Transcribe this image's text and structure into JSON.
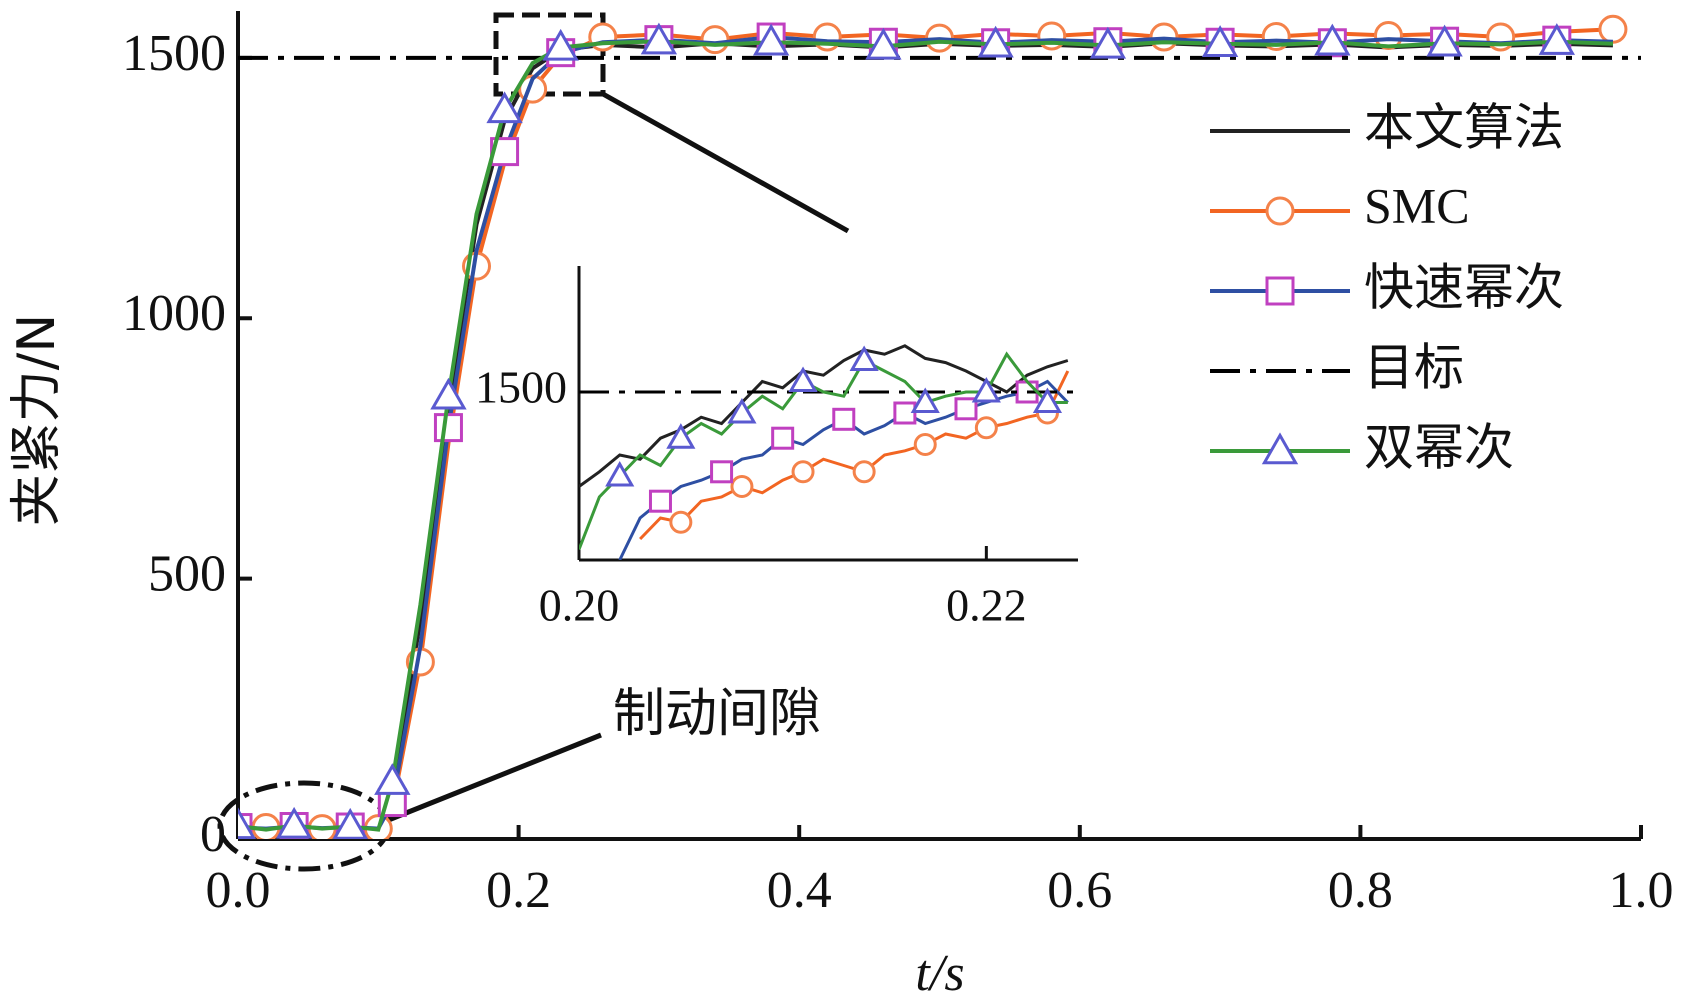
{
  "chart_data": [
    {
      "type": "line",
      "x_label": "t/s",
      "y_label": "夹紧力/N",
      "annotations": [
        "制动间隙"
      ],
      "xlim": [
        0,
        1
      ],
      "ylim": [
        0,
        1590
      ],
      "xticks": [
        {
          "value": 0,
          "label": "0.0"
        },
        0.2,
        0.4,
        0.6,
        0.8,
        {
          "value": 1,
          "label": "1.0"
        }
      ],
      "yticks": [
        0,
        500,
        1000,
        1500
      ],
      "legend": "upper right",
      "x": [
        0,
        0.02,
        0.04,
        0.06,
        0.08,
        0.1,
        0.11,
        0.13,
        0.15,
        0.17,
        0.19,
        0.21,
        0.23,
        0.26,
        0.3,
        0.34,
        0.38,
        0.42,
        0.46,
        0.5,
        0.54,
        0.58,
        0.62,
        0.66,
        0.7,
        0.74,
        0.78,
        0.82,
        0.86,
        0.9,
        0.94,
        0.98
      ],
      "series": [
        {
          "name": "本文算法",
          "color": "#222222",
          "marker": "none",
          "dash": "solid",
          "values": [
            20,
            25,
            18,
            24,
            20,
            22,
            90,
            420,
            830,
            1180,
            1380,
            1480,
            1515,
            1525,
            1520,
            1528,
            1522,
            1526,
            1520,
            1527,
            1523,
            1525,
            1521,
            1528,
            1524,
            1522,
            1526,
            1520,
            1525,
            1523,
            1527,
            1524
          ]
        },
        {
          "name": "SMC",
          "color": "#f26522",
          "marker": "circle",
          "marker_color": "#f4824a",
          "dash": "solid",
          "values": [
            20,
            22,
            24,
            20,
            22,
            20,
            60,
            340,
            760,
            1100,
            1300,
            1440,
            1505,
            1540,
            1545,
            1535,
            1548,
            1540,
            1545,
            1538,
            1546,
            1542,
            1548,
            1540,
            1545,
            1541,
            1547,
            1543,
            1546,
            1540,
            1550,
            1555
          ]
        },
        {
          "name": "快速幂次",
          "color": "#2e4fa3",
          "marker": "square",
          "marker_color": "#c040c0",
          "dash": "solid",
          "values": [
            22,
            20,
            24,
            21,
            23,
            20,
            70,
            370,
            790,
            1130,
            1320,
            1460,
            1510,
            1530,
            1535,
            1528,
            1540,
            1532,
            1530,
            1536,
            1529,
            1534,
            1531,
            1537,
            1530,
            1533,
            1529,
            1536,
            1532,
            1528,
            1534,
            1531
          ]
        },
        {
          "name": "目标",
          "color": "#000000",
          "marker": "none",
          "dash": "dashdot",
          "x": [
            0,
            1
          ],
          "values": [
            1500,
            1500
          ]
        },
        {
          "name": "双幂次",
          "color": "#3a9a3a",
          "marker": "triangle",
          "marker_color": "#5a5ad0",
          "dash": "solid",
          "values": [
            25,
            18,
            26,
            20,
            24,
            18,
            110,
            450,
            850,
            1200,
            1400,
            1490,
            1520,
            1528,
            1532,
            1525,
            1530,
            1527,
            1522,
            1531,
            1526,
            1529,
            1524,
            1530,
            1527,
            1525,
            1530,
            1522,
            1528,
            1526,
            1531,
            1527
          ]
        }
      ]
    },
    {
      "type": "line",
      "xlim": [
        0.2,
        0.2245
      ],
      "ylim": [
        1420,
        1560
      ],
      "xticks": [
        {
          "value": 0.2,
          "label": "0.20"
        },
        0.22
      ],
      "yticks": [
        1500
      ],
      "x": [
        0.2,
        0.201,
        0.202,
        0.203,
        0.204,
        0.205,
        0.206,
        0.207,
        0.208,
        0.209,
        0.21,
        0.211,
        0.212,
        0.213,
        0.214,
        0.215,
        0.216,
        0.217,
        0.218,
        0.219,
        0.22,
        0.221,
        0.222,
        0.223,
        0.224
      ],
      "series": [
        {
          "color": "#222222",
          "marker": "none",
          "dash": "solid",
          "values": [
            1455,
            1462,
            1470,
            1468,
            1478,
            1482,
            1488,
            1485,
            1495,
            1505,
            1502,
            1510,
            1508,
            1515,
            1520,
            1518,
            1522,
            1516,
            1514,
            1510,
            1505,
            1500,
            1508,
            1512,
            1515
          ]
        },
        {
          "color": "#f26522",
          "marker": "circle",
          "marker_color": "#f4824a",
          "dash": "solid",
          "values": [
            null,
            null,
            null,
            1430,
            1440,
            1438,
            1448,
            1450,
            1455,
            1452,
            1458,
            1462,
            1468,
            1465,
            1462,
            1470,
            1472,
            1475,
            1480,
            1478,
            1483,
            1485,
            1488,
            1490,
            1510
          ]
        },
        {
          "color": "#2e4fa3",
          "marker": "square",
          "marker_color": "#c040c0",
          "dash": "solid",
          "values": [
            null,
            null,
            1420,
            1440,
            1448,
            1455,
            1458,
            1462,
            1468,
            1470,
            1478,
            1475,
            1482,
            1487,
            1480,
            1484,
            1490,
            1485,
            1488,
            1492,
            1495,
            1498,
            1500,
            1505,
            1495
          ]
        },
        {
          "color": "#000000",
          "marker": "none",
          "dash": "dashdot",
          "x": [
            0.2,
            0.2245
          ],
          "values": [
            1500,
            1500
          ]
        },
        {
          "color": "#3a9a3a",
          "marker": "triangle",
          "marker_color": "#5a5ad0",
          "dash": "solid",
          "values": [
            1425,
            1450,
            1460,
            1470,
            1465,
            1478,
            1485,
            1480,
            1490,
            1498,
            1492,
            1505,
            1500,
            1498,
            1515,
            1510,
            1505,
            1495,
            1498,
            1500,
            1500,
            1518,
            1505,
            1495,
            1495
          ]
        }
      ]
    }
  ]
}
